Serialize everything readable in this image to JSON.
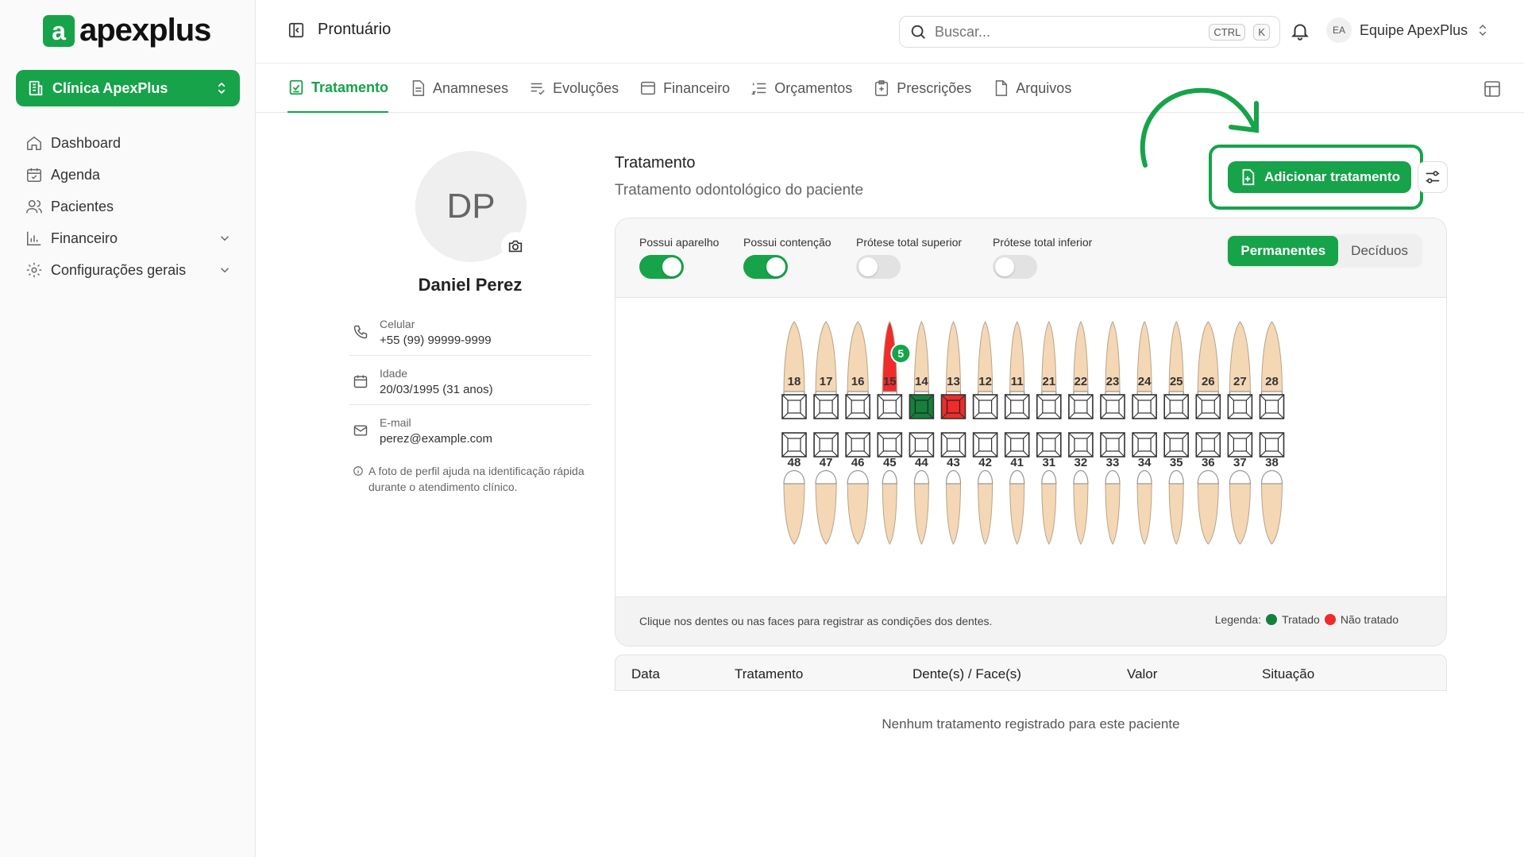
{
  "app": {
    "logo_mark": "a",
    "logo_text": "apexplus"
  },
  "sidebar": {
    "clinic": "Clínica ApexPlus",
    "items": [
      {
        "label": "Dashboard",
        "icon": "home-icon"
      },
      {
        "label": "Agenda",
        "icon": "calendar-icon"
      },
      {
        "label": "Pacientes",
        "icon": "users-icon"
      },
      {
        "label": "Financeiro",
        "icon": "chart-icon",
        "expandable": true
      },
      {
        "label": "Configurações gerais",
        "icon": "gear-icon",
        "expandable": true
      }
    ]
  },
  "header": {
    "title": "Prontuário",
    "search_placeholder": "Buscar...",
    "shortcut_ctrl": "CTRL",
    "shortcut_k": "K",
    "team_initials": "EA",
    "team_name": "Equipe ApexPlus"
  },
  "tabs": [
    {
      "label": "Tratamento",
      "active": true
    },
    {
      "label": "Anamneses"
    },
    {
      "label": "Evoluções"
    },
    {
      "label": "Financeiro"
    },
    {
      "label": "Orçamentos"
    },
    {
      "label": "Prescrições"
    },
    {
      "label": "Arquivos"
    }
  ],
  "patient": {
    "initials": "DP",
    "name": "Daniel Perez",
    "phone_label": "Celular",
    "phone": "+55 (99) 99999-9999",
    "age_label": "Idade",
    "age": "20/03/1995 (31 anos)",
    "email_label": "E-mail",
    "email": "perez@example.com",
    "hint": "A foto de perfil ajuda na identificação rápida durante o atendimento clínico."
  },
  "treatment": {
    "title": "Tratamento",
    "subtitle": "Tratamento odontológico do paciente",
    "add_button": "Adicionar tratamento",
    "toggles": [
      {
        "label": "Possui aparelho",
        "on": true
      },
      {
        "label": "Possui contenção",
        "on": true
      },
      {
        "label": "Prótese total superior",
        "on": false
      },
      {
        "label": "Prótese total inferior",
        "on": false
      }
    ],
    "dentition": {
      "options": [
        "Permanentes",
        "Decíduos"
      ],
      "selected": "Permanentes"
    },
    "upper_teeth": [
      "18",
      "17",
      "16",
      "15",
      "14",
      "13",
      "12",
      "11",
      "21",
      "22",
      "23",
      "24",
      "25",
      "26",
      "27",
      "28"
    ],
    "lower_teeth": [
      "48",
      "47",
      "46",
      "45",
      "44",
      "43",
      "42",
      "41",
      "31",
      "32",
      "33",
      "34",
      "35",
      "36",
      "37",
      "38"
    ],
    "upper_status": {
      "14": "treated",
      "13": "untreated"
    },
    "badge": {
      "tooth": "15",
      "count": "5",
      "highlight_tooth": "15"
    },
    "footer_hint": "Clique nos dentes ou nas faces para registrar as condições dos dentes.",
    "legend_label": "Legenda:",
    "legend_treated": "Tratado",
    "legend_untreated": "Não tratado",
    "colors": {
      "treated": "#15803d",
      "untreated": "#ef2b2b",
      "accent": "#16a34a",
      "tooth": "#f4d7b5"
    }
  },
  "table": {
    "columns": [
      "Data",
      "Tratamento",
      "Dente(s) / Face(s)",
      "Valor",
      "Situação"
    ],
    "empty": "Nenhum tratamento registrado para este paciente"
  }
}
